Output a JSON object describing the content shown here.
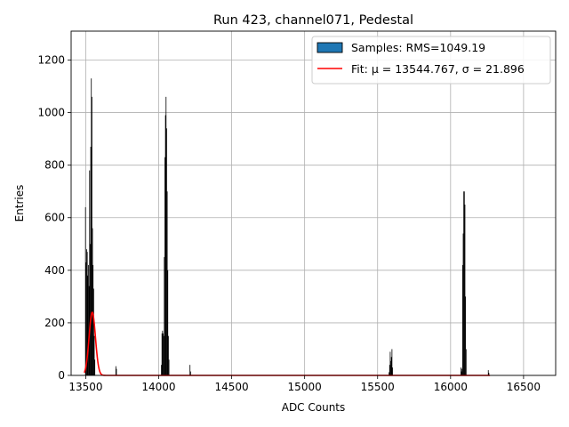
{
  "chart_data": {
    "type": "bar",
    "title": "Run 423, channel071, Pedestal",
    "xlabel": "ADC Counts",
    "ylabel": "Entries",
    "xlim": [
      13400,
      16720
    ],
    "ylim": [
      0,
      1310
    ],
    "xticks": [
      13500,
      14000,
      14500,
      15000,
      15500,
      16000,
      16500
    ],
    "yticks": [
      0,
      200,
      400,
      600,
      800,
      1000,
      1200
    ],
    "grid": true,
    "legend_position": "top-right",
    "legend": {
      "samples_label": "Samples: RMS=1049.19",
      "fit_label": "Fit: μ = 13544.767, σ = 21.896"
    },
    "colors": {
      "histogram_fill": "#000000",
      "legend_patch": "#1f77b4",
      "fit_line": "#ff0000",
      "grid": "#b0b0b0"
    },
    "histogram": {
      "bin_width": 4,
      "bins": [
        [
          13496,
          640
        ],
        [
          13500,
          430
        ],
        [
          13504,
          480
        ],
        [
          13508,
          470
        ],
        [
          13512,
          380
        ],
        [
          13516,
          420
        ],
        [
          13520,
          340
        ],
        [
          13524,
          780
        ],
        [
          13528,
          500
        ],
        [
          13532,
          870
        ],
        [
          13536,
          1130
        ],
        [
          13540,
          1060
        ],
        [
          13544,
          560
        ],
        [
          13548,
          420
        ],
        [
          13552,
          330
        ],
        [
          13556,
          150
        ],
        [
          13560,
          60
        ],
        [
          13704,
          35
        ],
        [
          13708,
          25
        ],
        [
          14016,
          40
        ],
        [
          14020,
          160
        ],
        [
          14024,
          170
        ],
        [
          14028,
          160
        ],
        [
          14032,
          150
        ],
        [
          14036,
          450
        ],
        [
          14040,
          830
        ],
        [
          14044,
          990
        ],
        [
          14048,
          1060
        ],
        [
          14052,
          940
        ],
        [
          14056,
          700
        ],
        [
          14060,
          400
        ],
        [
          14064,
          150
        ],
        [
          14068,
          60
        ],
        [
          14212,
          40
        ],
        [
          14216,
          15
        ],
        [
          15576,
          12
        ],
        [
          15580,
          40
        ],
        [
          15584,
          90
        ],
        [
          15588,
          55
        ],
        [
          15592,
          70
        ],
        [
          15596,
          100
        ],
        [
          15600,
          30
        ],
        [
          16068,
          30
        ],
        [
          16072,
          15
        ],
        [
          16076,
          25
        ],
        [
          16080,
          420
        ],
        [
          16084,
          540
        ],
        [
          16088,
          700
        ],
        [
          16092,
          700
        ],
        [
          16096,
          650
        ],
        [
          16100,
          300
        ],
        [
          16104,
          100
        ],
        [
          16256,
          20
        ],
        [
          16260,
          10
        ]
      ]
    },
    "fit": {
      "function": "gaussian",
      "mu": 13544.767,
      "sigma": 21.896,
      "amplitude": 240,
      "x_range": [
        13490,
        16270
      ]
    }
  }
}
